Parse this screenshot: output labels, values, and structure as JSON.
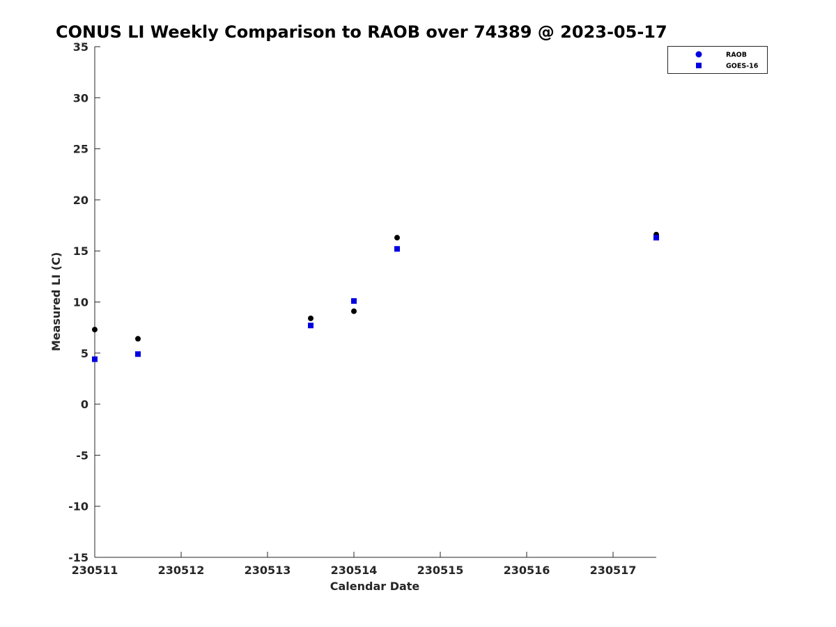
{
  "chart_data": {
    "type": "scatter",
    "title": "CONUS LI Weekly Comparison to RAOB over 74389 @ 2023-05-17",
    "xlabel": "Calendar Date",
    "ylabel": "Measured LI (C)",
    "xlim": [
      0,
      6.5
    ],
    "ylim": [
      -15,
      35
    ],
    "x_ticks": [
      0,
      1,
      2,
      3,
      4,
      5,
      6
    ],
    "x_tick_labels": [
      "230511",
      "230512",
      "230513",
      "230514",
      "230515",
      "230516",
      "230517"
    ],
    "y_ticks": [
      35,
      30,
      25,
      20,
      15,
      10,
      5,
      0,
      -5,
      -10,
      -15
    ],
    "y_tick_labels": [
      "35",
      "30",
      "25",
      "20",
      "15",
      "10",
      "5",
      "0",
      "-5",
      "-10",
      "-15"
    ],
    "grid": false,
    "legend_position": "top-right",
    "series": [
      {
        "name": "RAOB",
        "marker": "circle",
        "color": "#000000",
        "legend_color": "#0000e0",
        "x": [
          0,
          0.5,
          2.5,
          3,
          3.5,
          6.5
        ],
        "y": [
          7.3,
          6.4,
          8.4,
          9.1,
          16.3,
          16.6
        ]
      },
      {
        "name": "GOES-16",
        "marker": "square",
        "color": "#0000e0",
        "legend_color": "#0000e0",
        "x": [
          0,
          0.5,
          2.5,
          3,
          3.5,
          6.5
        ],
        "y": [
          4.4,
          4.9,
          7.7,
          10.1,
          15.2,
          16.3
        ]
      }
    ]
  }
}
